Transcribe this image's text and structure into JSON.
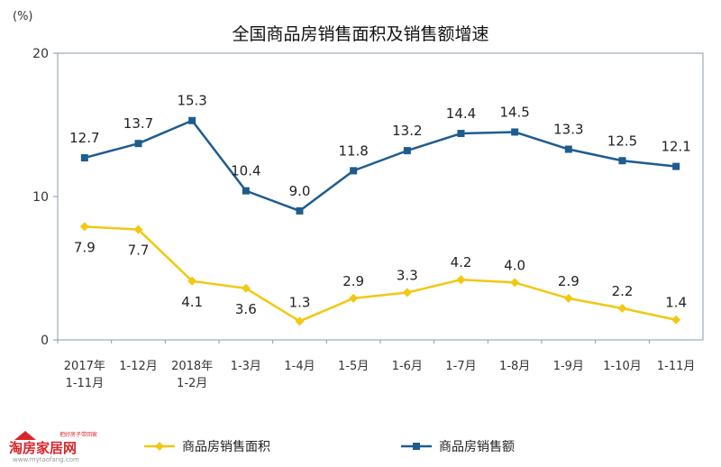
{
  "chart_data": {
    "type": "line",
    "title": "全国商品房销售面积及销售额增速",
    "unit": "(%)",
    "ylim": [
      0,
      20
    ],
    "yticks": [
      "0",
      "10",
      "20"
    ],
    "grid": false,
    "legend_placement": "bottom",
    "categories": [
      [
        "2017年",
        "1-11月"
      ],
      [
        "1-12月"
      ],
      [
        "2018年",
        "1-2月"
      ],
      [
        "1-3月"
      ],
      [
        "1-4月"
      ],
      [
        "1-5月"
      ],
      [
        "1-6月"
      ],
      [
        "1-7月"
      ],
      [
        "1-8月"
      ],
      [
        "1-9月"
      ],
      [
        "1-10月"
      ],
      [
        "1-11月"
      ]
    ],
    "series": [
      {
        "name": "商品房销售面积",
        "color": "#f2c811",
        "marker": "diamond",
        "values": [
          7.9,
          7.7,
          4.1,
          3.6,
          1.3,
          2.9,
          3.3,
          4.2,
          4.0,
          2.9,
          2.2,
          1.4
        ],
        "labels": [
          "7.9",
          "7.7",
          "4.1",
          "3.6",
          "1.3",
          "2.9",
          "3.3",
          "4.2",
          "4.0",
          "2.9",
          "2.2",
          "1.4"
        ]
      },
      {
        "name": "商品房销售额",
        "color": "#1e5c8f",
        "marker": "square",
        "values": [
          12.7,
          13.7,
          15.3,
          10.4,
          9.0,
          11.8,
          13.2,
          14.4,
          14.5,
          13.3,
          12.5,
          12.1
        ],
        "labels": [
          "12.7",
          "13.7",
          "15.3",
          "10.4",
          "9.0",
          "11.8",
          "13.2",
          "14.4",
          "14.5",
          "13.3",
          "12.5",
          "12.1"
        ]
      }
    ]
  },
  "watermark": {
    "brand": "淘房家居网",
    "url": "www.mytaofang.com",
    "slogan": "把好房子带回家"
  },
  "colors": {
    "axis": "#8a9aa8",
    "watermark_red": "#d7262b"
  }
}
